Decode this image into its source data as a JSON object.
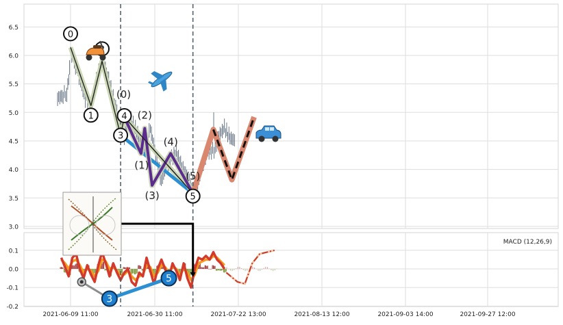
{
  "chart_data": [
    {
      "type": "line",
      "panel": "price",
      "title": "",
      "ylim": [
        2.97,
        6.9
      ],
      "yticks": [
        3.0,
        3.5,
        4.0,
        4.5,
        5.0,
        5.5,
        6.0,
        6.5
      ],
      "grid": true,
      "price_series": {
        "name": "",
        "points": [
          [
            -3.5,
            5.25
          ],
          [
            -2.0,
            5.3
          ],
          [
            -1.0,
            5.35
          ],
          [
            -0.5,
            5.55
          ],
          [
            0.0,
            6.1
          ],
          [
            1.0,
            5.85
          ],
          [
            2.0,
            5.7
          ],
          [
            3.0,
            5.45
          ],
          [
            4.0,
            5.25
          ],
          [
            5.5,
            5.12
          ],
          [
            7.0,
            5.55
          ],
          [
            8.5,
            5.92
          ],
          [
            10.0,
            5.65
          ],
          [
            11.5,
            5.25
          ],
          [
            13.5,
            4.8
          ],
          [
            14.5,
            4.6
          ],
          [
            16.0,
            4.9
          ],
          [
            17.5,
            4.7
          ],
          [
            19.0,
            4.45
          ],
          [
            20.0,
            4.3
          ],
          [
            21.5,
            4.72
          ],
          [
            23.0,
            4.25
          ],
          [
            24.5,
            3.8
          ],
          [
            26.0,
            4.1
          ],
          [
            28.5,
            4.3
          ],
          [
            30.0,
            4.05
          ],
          [
            32.0,
            3.82
          ],
          [
            33.0,
            3.58
          ],
          [
            34.0,
            3.68
          ],
          [
            35.5,
            4.05
          ],
          [
            37.0,
            4.3
          ],
          [
            39.0,
            4.35
          ],
          [
            40.0,
            4.6
          ],
          [
            41.5,
            4.72
          ],
          [
            43.0,
            4.55
          ],
          [
            44.5,
            4.5
          ]
        ]
      },
      "waves": {
        "impulse_labels": [
          "0",
          "1",
          "2",
          "3",
          "4",
          "5"
        ],
        "impulse_points": [
          [
            0.0,
            6.14
          ],
          [
            5.5,
            5.12
          ],
          [
            8.5,
            5.9
          ],
          [
            13.5,
            4.6
          ],
          [
            14.5,
            4.92
          ],
          [
            33.0,
            3.58
          ]
        ],
        "corrective_labels": [
          "(0)",
          "(1)",
          "(2)",
          "(3)",
          "(4)",
          "(5)"
        ],
        "corrective_points": [
          [
            14.5,
            4.92
          ],
          [
            19.0,
            4.28
          ],
          [
            20.0,
            4.72
          ],
          [
            22.0,
            3.72
          ],
          [
            27.0,
            4.28
          ],
          [
            33.0,
            3.58
          ]
        ],
        "trendline": [
          [
            13.5,
            4.6
          ],
          [
            33.0,
            3.58
          ]
        ],
        "projection": [
          [
            33.0,
            3.58
          ],
          [
            38.5,
            4.7
          ],
          [
            43.5,
            3.82
          ],
          [
            49.5,
            4.92
          ]
        ]
      },
      "icons": [
        "scooter-icon",
        "airplane-icon",
        "car-icon",
        "wave-thumbnail-image"
      ]
    },
    {
      "type": "line",
      "panel": "macd",
      "title": "MACD (12,26,9)",
      "ylim": [
        -0.2,
        0.2
      ],
      "yticks": [
        -0.2,
        -0.1,
        0.0,
        0.1
      ],
      "xticks": [
        "2021-06-09 11:00",
        "2021-06-30 11:00",
        "2021-07-22 13:00",
        "2021-08-13 12:00",
        "2021-09-03 14:00",
        "2021-09-27 12:00"
      ],
      "grid": true,
      "macd_points": [
        [
          -2.5,
          0.06
        ],
        [
          -1.5,
          0.01
        ],
        [
          -0.5,
          -0.04
        ],
        [
          0.5,
          0.06
        ],
        [
          1.5,
          0.08
        ],
        [
          2.5,
          0.0
        ],
        [
          3.5,
          -0.05
        ],
        [
          4.5,
          0.02
        ],
        [
          5.5,
          -0.03
        ],
        [
          6.5,
          -0.07
        ],
        [
          7.5,
          0.02
        ],
        [
          8.5,
          0.09
        ],
        [
          9.5,
          0.03
        ],
        [
          10.5,
          -0.04
        ],
        [
          11.5,
          0.03
        ],
        [
          12.5,
          -0.02
        ],
        [
          13.5,
          -0.06
        ],
        [
          14.5,
          -0.02
        ],
        [
          15.5,
          0.0
        ],
        [
          16.5,
          -0.07
        ],
        [
          17.5,
          -0.09
        ],
        [
          18.5,
          -0.02
        ],
        [
          19.5,
          -0.04
        ],
        [
          20.5,
          0.06
        ],
        [
          21.5,
          -0.01
        ],
        [
          22.5,
          -0.08
        ],
        [
          23.5,
          0.0
        ],
        [
          24.5,
          0.05
        ],
        [
          25.5,
          0.0
        ],
        [
          26.5,
          -0.05
        ],
        [
          27.5,
          0.03
        ],
        [
          28.5,
          -0.01
        ],
        [
          29.5,
          -0.06
        ],
        [
          30.5,
          0.03
        ],
        [
          31.5,
          -0.05
        ],
        [
          32.5,
          -0.1
        ],
        [
          33.5,
          0.0
        ],
        [
          34.5,
          0.06
        ],
        [
          35.5,
          0.05
        ],
        [
          36.5,
          0.07
        ],
        [
          37.5,
          0.05
        ],
        [
          38.5,
          0.09
        ],
        [
          39.5,
          0.05
        ],
        [
          40.5,
          0.03
        ],
        [
          41.5,
          0.0
        ]
      ],
      "signal_points": [
        [
          -2.5,
          0.05
        ],
        [
          -1.5,
          0.03
        ],
        [
          -0.5,
          0.0
        ],
        [
          0.5,
          0.04
        ],
        [
          1.5,
          0.05
        ],
        [
          2.5,
          0.02
        ],
        [
          3.5,
          -0.02
        ],
        [
          4.5,
          0.0
        ],
        [
          5.5,
          -0.01
        ],
        [
          6.5,
          -0.04
        ],
        [
          7.5,
          -0.01
        ],
        [
          8.5,
          0.05
        ],
        [
          9.5,
          0.04
        ],
        [
          10.5,
          0.0
        ],
        [
          11.5,
          0.01
        ],
        [
          12.5,
          -0.01
        ],
        [
          13.5,
          -0.03
        ],
        [
          14.5,
          -0.03
        ],
        [
          15.5,
          -0.01
        ],
        [
          16.5,
          -0.04
        ],
        [
          17.5,
          -0.06
        ],
        [
          18.5,
          -0.04
        ],
        [
          19.5,
          -0.03
        ],
        [
          20.5,
          0.02
        ],
        [
          21.5,
          0.01
        ],
        [
          22.5,
          -0.04
        ],
        [
          23.5,
          -0.02
        ],
        [
          24.5,
          0.02
        ],
        [
          25.5,
          0.01
        ],
        [
          26.5,
          -0.02
        ],
        [
          27.5,
          0.01
        ],
        [
          28.5,
          0.0
        ],
        [
          29.5,
          -0.03
        ],
        [
          30.5,
          0.0
        ],
        [
          31.5,
          -0.02
        ],
        [
          32.5,
          -0.06
        ],
        [
          33.5,
          -0.03
        ],
        [
          34.5,
          0.03
        ],
        [
          35.5,
          0.04
        ],
        [
          36.5,
          0.05
        ],
        [
          37.5,
          0.05
        ],
        [
          38.5,
          0.07
        ],
        [
          39.5,
          0.06
        ],
        [
          40.5,
          0.04
        ],
        [
          41.5,
          0.02
        ]
      ],
      "histogram": [
        [
          -2.5,
          0.01
        ],
        [
          -1.5,
          -0.02
        ],
        [
          -0.5,
          -0.04
        ],
        [
          0.5,
          0.02
        ],
        [
          1.5,
          0.03
        ],
        [
          2.5,
          -0.02
        ],
        [
          3.5,
          -0.03
        ],
        [
          4.5,
          0.02
        ],
        [
          5.5,
          -0.02
        ],
        [
          6.5,
          -0.03
        ],
        [
          7.5,
          0.03
        ],
        [
          8.5,
          0.04
        ],
        [
          9.5,
          -0.01
        ],
        [
          10.5,
          -0.04
        ],
        [
          11.5,
          0.02
        ],
        [
          12.5,
          -0.01
        ],
        [
          13.5,
          -0.03
        ],
        [
          14.5,
          0.01
        ],
        [
          15.5,
          0.01
        ],
        [
          16.5,
          -0.03
        ],
        [
          17.5,
          -0.03
        ],
        [
          18.5,
          0.02
        ],
        [
          19.5,
          -0.01
        ],
        [
          20.5,
          0.04
        ],
        [
          21.5,
          -0.02
        ],
        [
          22.5,
          -0.04
        ],
        [
          23.5,
          0.02
        ],
        [
          24.5,
          0.03
        ],
        [
          25.5,
          -0.01
        ],
        [
          26.5,
          -0.03
        ],
        [
          27.5,
          0.02
        ],
        [
          28.5,
          -0.01
        ],
        [
          29.5,
          -0.03
        ],
        [
          30.5,
          0.03
        ],
        [
          31.5,
          -0.03
        ],
        [
          32.5,
          -0.04
        ],
        [
          33.5,
          0.03
        ],
        [
          34.5,
          0.03
        ],
        [
          35.5,
          0.01
        ],
        [
          36.5,
          0.02
        ],
        [
          37.5,
          0.0
        ],
        [
          38.5,
          0.02
        ],
        [
          39.5,
          -0.01
        ],
        [
          40.5,
          -0.01
        ],
        [
          41.5,
          -0.02
        ]
      ],
      "projection": [
        [
          42.0,
          -0.02
        ],
        [
          45.0,
          -0.07
        ],
        [
          47.0,
          -0.08
        ],
        [
          49.0,
          0.03
        ],
        [
          51.0,
          0.08
        ],
        [
          55.0,
          0.1
        ]
      ],
      "divergence": {
        "labels": [
          "3",
          "5"
        ],
        "grey_line": [
          [
            3.0,
            -0.07
          ],
          [
            10.5,
            -0.16
          ]
        ],
        "blue_line": [
          [
            10.5,
            -0.16
          ],
          [
            26.5,
            -0.05
          ]
        ]
      }
    }
  ]
}
